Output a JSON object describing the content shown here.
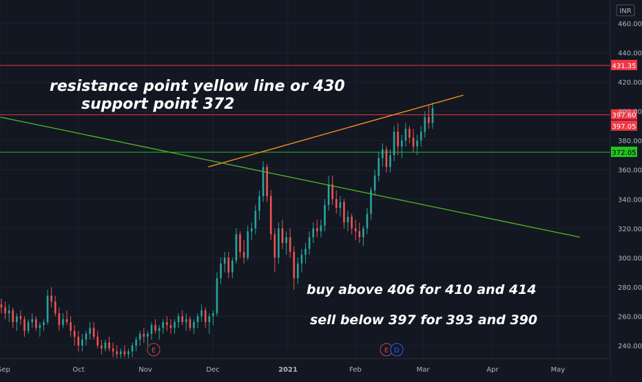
{
  "currency_label": "INR",
  "annotations": {
    "line1": "resistance point yellow line or 430",
    "line2": "support point 372",
    "buy": "buy above 406 for 410 and 414",
    "sell": "sell below 397 for 393 and 390"
  },
  "event_markers": [
    "E",
    "E",
    "D"
  ],
  "colors": {
    "background": "#131722",
    "grid": "#1e222d",
    "up": "#26a69a",
    "down": "#ef5350",
    "resistance_line": "#f7931a",
    "trend_line": "#4caf24",
    "level_red": "#f23645",
    "level_green": "#22c322"
  },
  "chart_data": {
    "type": "candlestick",
    "x_axis": {
      "ticks": [
        "Sep",
        "Oct",
        "Nov",
        "Dec",
        "2021",
        "Feb",
        "Mar",
        "Apr",
        "May"
      ]
    },
    "y_axis": {
      "ticks": [
        240,
        260,
        280,
        300,
        320,
        340,
        360,
        380,
        400,
        420,
        440,
        460
      ],
      "range": [
        230,
        468
      ]
    },
    "levels": [
      {
        "label": "431.35",
        "value": 431.35,
        "kind": "red"
      },
      {
        "label": "397.60",
        "value": 397.6,
        "kind": "red"
      },
      {
        "label": "397.05",
        "value": 397.05,
        "kind": "red"
      },
      {
        "label": "372.05",
        "value": 372.05,
        "kind": "green"
      }
    ],
    "trendlines": [
      {
        "kind": "resistance",
        "from": {
          "date": "2020-11-29",
          "value": 362
        },
        "to": {
          "date": "2021-03-19",
          "value": 411
        }
      },
      {
        "kind": "trend",
        "from": {
          "date": "2020-08-28",
          "value": 396
        },
        "to": {
          "date": "2021-05-11",
          "value": 314
        }
      }
    ],
    "candles_ohlc": [
      [
        268,
        272,
        262,
        266
      ],
      [
        266,
        270,
        258,
        262
      ],
      [
        262,
        268,
        256,
        264
      ],
      [
        264,
        266,
        252,
        256
      ],
      [
        256,
        262,
        250,
        260
      ],
      [
        260,
        264,
        254,
        258
      ],
      [
        258,
        260,
        246,
        250
      ],
      [
        250,
        258,
        248,
        256
      ],
      [
        256,
        262,
        252,
        258
      ],
      [
        258,
        260,
        250,
        252
      ],
      [
        252,
        256,
        246,
        254
      ],
      [
        254,
        258,
        250,
        256
      ],
      [
        256,
        278,
        254,
        274
      ],
      [
        274,
        280,
        266,
        270
      ],
      [
        270,
        274,
        260,
        262
      ],
      [
        262,
        266,
        250,
        254
      ],
      [
        254,
        262,
        252,
        258
      ],
      [
        258,
        264,
        254,
        256
      ],
      [
        256,
        260,
        246,
        250
      ],
      [
        250,
        254,
        240,
        246
      ],
      [
        246,
        250,
        236,
        240
      ],
      [
        240,
        248,
        236,
        244
      ],
      [
        244,
        250,
        240,
        248
      ],
      [
        248,
        256,
        244,
        252
      ],
      [
        252,
        256,
        244,
        246
      ],
      [
        246,
        250,
        238,
        240
      ],
      [
        240,
        244,
        234,
        238
      ],
      [
        238,
        244,
        236,
        242
      ],
      [
        242,
        246,
        236,
        238
      ],
      [
        238,
        242,
        232,
        236
      ],
      [
        236,
        240,
        230,
        234
      ],
      [
        234,
        238,
        230,
        236
      ],
      [
        236,
        240,
        232,
        234
      ],
      [
        234,
        238,
        230,
        236
      ],
      [
        236,
        242,
        232,
        240
      ],
      [
        240,
        246,
        236,
        244
      ],
      [
        244,
        250,
        240,
        248
      ],
      [
        248,
        252,
        242,
        246
      ],
      [
        246,
        250,
        240,
        248
      ],
      [
        248,
        256,
        244,
        254
      ],
      [
        254,
        258,
        248,
        250
      ],
      [
        250,
        254,
        244,
        252
      ],
      [
        252,
        258,
        248,
        256
      ],
      [
        256,
        260,
        250,
        254
      ],
      [
        254,
        258,
        248,
        252
      ],
      [
        252,
        258,
        248,
        256
      ],
      [
        256,
        262,
        252,
        260
      ],
      [
        260,
        264,
        254,
        256
      ],
      [
        256,
        262,
        250,
        258
      ],
      [
        258,
        260,
        250,
        252
      ],
      [
        252,
        258,
        248,
        256
      ],
      [
        256,
        262,
        252,
        260
      ],
      [
        260,
        268,
        256,
        264
      ],
      [
        264,
        266,
        252,
        256
      ],
      [
        256,
        262,
        248,
        260
      ],
      [
        260,
        264,
        254,
        262
      ],
      [
        262,
        290,
        260,
        286
      ],
      [
        286,
        300,
        282,
        296
      ],
      [
        296,
        304,
        290,
        300
      ],
      [
        300,
        304,
        286,
        290
      ],
      [
        290,
        300,
        286,
        298
      ],
      [
        298,
        320,
        296,
        316
      ],
      [
        316,
        318,
        300,
        304
      ],
      [
        304,
        312,
        296,
        300
      ],
      [
        300,
        322,
        298,
        318
      ],
      [
        318,
        324,
        312,
        320
      ],
      [
        320,
        336,
        316,
        332
      ],
      [
        332,
        346,
        326,
        342
      ],
      [
        342,
        366,
        338,
        362
      ],
      [
        362,
        364,
        338,
        342
      ],
      [
        342,
        346,
        312,
        316
      ],
      [
        316,
        320,
        290,
        300
      ],
      [
        300,
        324,
        296,
        320
      ],
      [
        320,
        326,
        306,
        310
      ],
      [
        310,
        318,
        302,
        314
      ],
      [
        314,
        320,
        300,
        304
      ],
      [
        304,
        308,
        278,
        286
      ],
      [
        286,
        300,
        282,
        296
      ],
      [
        296,
        306,
        290,
        302
      ],
      [
        302,
        310,
        296,
        306
      ],
      [
        306,
        318,
        302,
        314
      ],
      [
        314,
        324,
        310,
        320
      ],
      [
        320,
        326,
        314,
        318
      ],
      [
        318,
        326,
        314,
        322
      ],
      [
        322,
        340,
        318,
        336
      ],
      [
        336,
        356,
        332,
        350
      ],
      [
        350,
        356,
        336,
        340
      ],
      [
        340,
        346,
        330,
        334
      ],
      [
        334,
        342,
        328,
        338
      ],
      [
        338,
        340,
        320,
        324
      ],
      [
        324,
        332,
        318,
        328
      ],
      [
        328,
        330,
        316,
        320
      ],
      [
        320,
        326,
        312,
        318
      ],
      [
        318,
        324,
        310,
        314
      ],
      [
        314,
        322,
        308,
        320
      ],
      [
        320,
        334,
        316,
        330
      ],
      [
        330,
        348,
        326,
        346
      ],
      [
        346,
        360,
        342,
        356
      ],
      [
        356,
        372,
        352,
        368
      ],
      [
        368,
        378,
        362,
        374
      ],
      [
        374,
        376,
        358,
        362
      ],
      [
        362,
        374,
        358,
        370
      ],
      [
        370,
        390,
        366,
        386
      ],
      [
        386,
        392,
        370,
        376
      ],
      [
        376,
        384,
        368,
        380
      ],
      [
        380,
        392,
        376,
        388
      ],
      [
        388,
        390,
        378,
        382
      ],
      [
        382,
        388,
        372,
        376
      ],
      [
        376,
        384,
        370,
        380
      ],
      [
        380,
        390,
        376,
        386
      ],
      [
        386,
        400,
        382,
        396
      ],
      [
        396,
        404,
        388,
        392
      ],
      [
        392,
        406,
        388,
        402
      ]
    ]
  }
}
